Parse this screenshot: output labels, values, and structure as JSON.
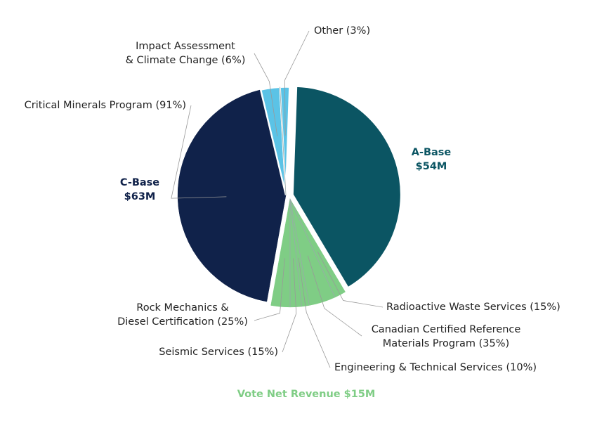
{
  "chart_data": {
    "type": "pie",
    "slices": [
      {
        "name": "A-Base",
        "value": 54,
        "value_label": "$54M",
        "color": "#0b5563"
      },
      {
        "name": "Vote Net Revenue",
        "value": 15,
        "value_label": "$15M",
        "color": "#7fcd85",
        "parts": [
          {
            "label": "Radioactive Waste Services (15%)",
            "value": 15,
            "color": "#7fcd85"
          },
          {
            "label": "Canadian Certified Reference\nMaterials Program (35%)",
            "value": 35,
            "color": "#7fcd85"
          },
          {
            "label": "Engineering & Technical Services (10%)",
            "value": 10,
            "color": "#7fcd85"
          },
          {
            "label": "Seismic Services (15%)",
            "value": 15,
            "color": "#7fcd85"
          },
          {
            "label": "Rock Mechanics &\nDiesel Certification (25%)",
            "value": 25,
            "color": "#7fcd85"
          }
        ]
      },
      {
        "name": "C-Base",
        "value": 63,
        "value_label": "$63M",
        "color": "#10224a",
        "parts": [
          {
            "label": "Critical Minerals Program (91%)",
            "value": 91,
            "color": "#10224a"
          },
          {
            "label": "Impact Assessment\n& Climate Change (6%)",
            "value": 6,
            "color": "#5bc3e6"
          },
          {
            "label": "Other (3%)",
            "value": 3,
            "color": "#5bc3e6"
          }
        ]
      }
    ]
  }
}
